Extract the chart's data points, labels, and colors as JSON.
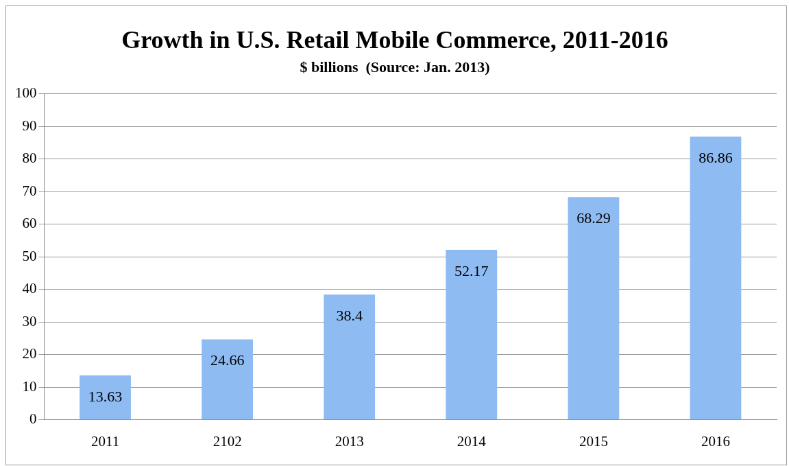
{
  "chart_data": {
    "type": "bar",
    "title": "Growth in U.S. Retail Mobile Commerce, 2011-2016",
    "subtitle": "$ billions  (Source: Jan. 2013)",
    "categories": [
      "2011",
      "2102",
      "2013",
      "2014",
      "2015",
      "2016"
    ],
    "values": [
      13.63,
      24.66,
      38.4,
      52.17,
      68.29,
      86.86
    ],
    "color": "#8dbbf2",
    "ylim": [
      0,
      100
    ],
    "yticks": [
      0,
      10,
      20,
      30,
      40,
      50,
      60,
      70,
      80,
      90,
      100
    ],
    "grid": "y",
    "legend": false,
    "data_labels": true
  }
}
